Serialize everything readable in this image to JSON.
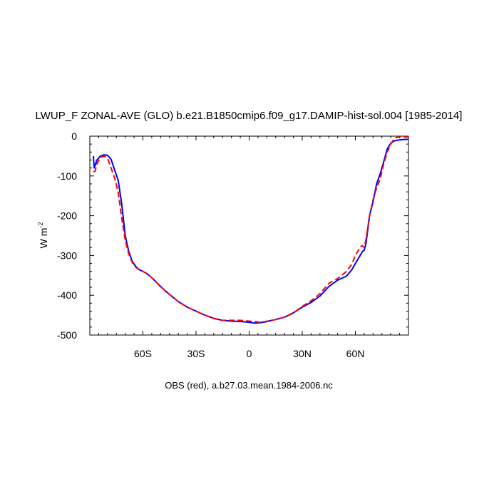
{
  "chart_data": {
    "type": "line",
    "title": "LWUP_F ZONAL-AVE (GLO) b.e21.B1850cmip6.f09_g17.DAMIP-hist-sol.004 [1985-2014]",
    "subtitle": "OBS (red), a.b27.03.mean.1984-2006.nc",
    "ylabel": "W m",
    "ylabel_sup": "-2",
    "xlim": [
      -90,
      90
    ],
    "ylim": [
      -500,
      0
    ],
    "x_ticks": [
      {
        "value": -60,
        "label": "60S"
      },
      {
        "value": -30,
        "label": "30S"
      },
      {
        "value": 0,
        "label": "0"
      },
      {
        "value": 30,
        "label": "30N"
      },
      {
        "value": 60,
        "label": "60N"
      }
    ],
    "y_ticks": [
      {
        "value": 0,
        "label": "0"
      },
      {
        "value": -100,
        "label": "-100"
      },
      {
        "value": -200,
        "label": "-200"
      },
      {
        "value": -300,
        "label": "-300"
      },
      {
        "value": -400,
        "label": "-400"
      },
      {
        "value": -500,
        "label": "-500"
      }
    ],
    "grid": false,
    "series": [
      {
        "color": "#0000ff",
        "style": "solid",
        "x": [
          -88,
          -87.5,
          -86,
          -84,
          -82,
          -80,
          -78,
          -76,
          -74,
          -72,
          -70,
          -68,
          -66,
          -64,
          -62,
          -60,
          -58,
          -56,
          -54,
          -50,
          -45,
          -40,
          -35,
          -30,
          -25,
          -20,
          -15,
          -10,
          -5,
          0,
          3,
          6,
          9,
          12,
          15,
          20,
          25,
          30,
          35,
          40,
          45,
          50,
          55,
          58,
          60,
          62,
          63,
          64,
          65,
          66,
          68,
          70,
          72,
          74,
          76,
          78,
          80,
          82,
          84,
          86,
          88,
          90
        ],
        "y": [
          -50,
          -80,
          -60,
          -50,
          -47,
          -48,
          -58,
          -85,
          -110,
          -170,
          -250,
          -290,
          -315,
          -328,
          -336,
          -340,
          -345,
          -352,
          -360,
          -378,
          -398,
          -416,
          -430,
          -440,
          -450,
          -458,
          -463,
          -465,
          -466,
          -468,
          -470,
          -469,
          -467,
          -464,
          -461,
          -455,
          -444,
          -430,
          -418,
          -402,
          -378,
          -362,
          -352,
          -336,
          -320,
          -305,
          -298,
          -290,
          -287,
          -270,
          -200,
          -165,
          -120,
          -95,
          -65,
          -32,
          -18,
          -12,
          -10,
          -9,
          -8,
          -8
        ]
      },
      {
        "color": "#ff0000",
        "style": "dashed",
        "x": [
          -88,
          -87,
          -86,
          -84,
          -82,
          -80,
          -78,
          -76,
          -74,
          -72,
          -70,
          -68,
          -66,
          -64,
          -62,
          -60,
          -58,
          -56,
          -54,
          -50,
          -45,
          -40,
          -35,
          -30,
          -25,
          -20,
          -15,
          -10,
          -5,
          0,
          3,
          6,
          9,
          12,
          15,
          20,
          25,
          30,
          35,
          40,
          45,
          50,
          55,
          58,
          60,
          62,
          63,
          64,
          65,
          66,
          68,
          70,
          72,
          74,
          76,
          78,
          80,
          82,
          84,
          86,
          88,
          90
        ],
        "y": [
          -90,
          -88,
          -70,
          -53,
          -50,
          -55,
          -80,
          -105,
          -140,
          -205,
          -262,
          -296,
          -318,
          -330,
          -336,
          -340,
          -345,
          -352,
          -360,
          -378,
          -398,
          -416,
          -430,
          -440,
          -450,
          -458,
          -463,
          -463,
          -463,
          -465,
          -466,
          -468,
          -466,
          -464,
          -461,
          -455,
          -445,
          -428,
          -414,
          -396,
          -370,
          -358,
          -340,
          -322,
          -300,
          -285,
          -278,
          -275,
          -280,
          -260,
          -200,
          -160,
          -130,
          -108,
          -70,
          -40,
          -20,
          -6,
          -2,
          -2,
          -2,
          -2
        ]
      }
    ]
  }
}
